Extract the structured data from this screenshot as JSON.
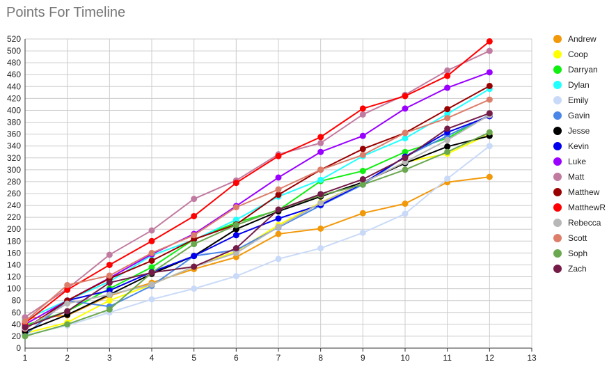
{
  "chart_data": {
    "type": "line",
    "title": "Points For Timeline",
    "xlabel": "",
    "ylabel": "",
    "xlim": [
      1,
      13
    ],
    "ylim": [
      0,
      520
    ],
    "x_ticks": [
      1,
      2,
      3,
      4,
      5,
      6,
      7,
      8,
      9,
      10,
      11,
      12,
      13
    ],
    "y_ticks": [
      0,
      20,
      40,
      60,
      80,
      100,
      120,
      140,
      160,
      180,
      200,
      220,
      240,
      260,
      280,
      300,
      320,
      340,
      360,
      380,
      400,
      420,
      440,
      460,
      480,
      500,
      520
    ],
    "grid": true,
    "legend_position": "right",
    "x": [
      1,
      2,
      3,
      4,
      5,
      6,
      7,
      8,
      9,
      10,
      11,
      12
    ],
    "series": [
      {
        "name": "Andrew",
        "color": "#f2990b",
        "values": [
          50,
          55,
          88,
          110,
          133,
          153,
          192,
          201,
          227,
          243,
          279,
          288
        ]
      },
      {
        "name": "Coop",
        "color": "#ffff00",
        "values": [
          25,
          43,
          80,
          107,
          137,
          163,
          207,
          245,
          278,
          313,
          327,
          360
        ]
      },
      {
        "name": "Darryan",
        "color": "#11ee11",
        "values": [
          38,
          62,
          100,
          136,
          183,
          211,
          232,
          281,
          298,
          330,
          353,
          392
        ]
      },
      {
        "name": "Dylan",
        "color": "#22ffff",
        "values": [
          48,
          80,
          112,
          156,
          182,
          216,
          255,
          283,
          323,
          353,
          394,
          436
        ]
      },
      {
        "name": "Emily",
        "color": "#c9daf8",
        "values": [
          22,
          38,
          60,
          82,
          100,
          121,
          150,
          168,
          194,
          226,
          285,
          340
        ]
      },
      {
        "name": "Gavin",
        "color": "#4a86e8",
        "values": [
          22,
          80,
          70,
          105,
          155,
          165,
          203,
          240,
          275,
          322,
          357,
          392
        ]
      },
      {
        "name": "Jesse",
        "color": "#000000",
        "values": [
          28,
          56,
          90,
          125,
          155,
          200,
          230,
          255,
          279,
          311,
          339,
          357
        ]
      },
      {
        "name": "Kevin",
        "color": "#0000ee",
        "values": [
          32,
          80,
          97,
          128,
          155,
          190,
          218,
          241,
          277,
          322,
          363,
          390
        ]
      },
      {
        "name": "Luke",
        "color": "#9900ff",
        "values": [
          40,
          80,
          118,
          158,
          192,
          239,
          287,
          330,
          357,
          403,
          438,
          464
        ]
      },
      {
        "name": "Matt",
        "color": "#c27ba0",
        "values": [
          52,
          100,
          157,
          198,
          251,
          282,
          326,
          345,
          393,
          426,
          467,
          500
        ]
      },
      {
        "name": "Matthew",
        "color": "#990000",
        "values": [
          32,
          80,
          117,
          147,
          183,
          208,
          258,
          300,
          335,
          362,
          402,
          441
        ]
      },
      {
        "name": "MatthewR",
        "color": "#ff0000",
        "values": [
          42,
          98,
          140,
          180,
          222,
          278,
          323,
          355,
          403,
          424,
          458,
          516
        ]
      },
      {
        "name": "Rebecca",
        "color": "#b7b7b7",
        "values": [
          33,
          75,
          90,
          107,
          137,
          160,
          204,
          244,
          278,
          313,
          350,
          392
        ]
      },
      {
        "name": "Scott",
        "color": "#dd7e6b",
        "values": [
          45,
          106,
          122,
          160,
          190,
          237,
          267,
          300,
          325,
          362,
          387,
          418
        ]
      },
      {
        "name": "Soph",
        "color": "#6aa84f",
        "values": [
          20,
          40,
          65,
          127,
          175,
          207,
          233,
          257,
          275,
          300,
          330,
          363
        ]
      },
      {
        "name": "Zach",
        "color": "#741b47",
        "values": [
          35,
          62,
          110,
          127,
          137,
          168,
          233,
          259,
          284,
          320,
          369,
          395
        ]
      }
    ]
  }
}
